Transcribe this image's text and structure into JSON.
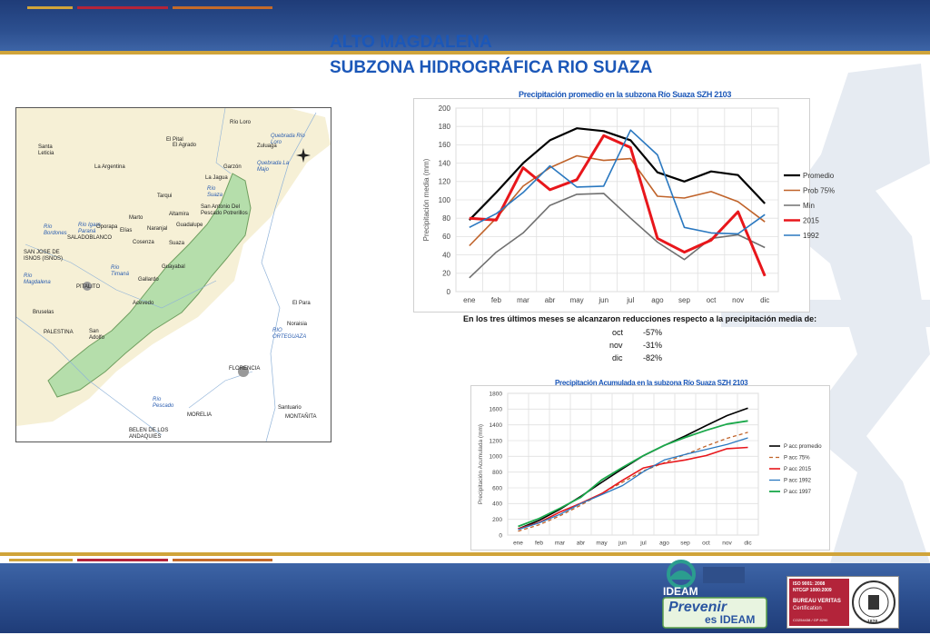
{
  "header": {
    "title_line1": "ALTO MAGDALENA",
    "title_line2": "SUBZONA HIDROGRÁFICA RIO SUAZA"
  },
  "colors": {
    "title_blue": "#1b57b8",
    "band_blue": "#2c4f8f",
    "gold": "#d0a43a",
    "basin_green": "#b5deab"
  },
  "map": {
    "labels": [
      "Río Loro",
      "Quebrada Río Loro",
      "Zuluaga",
      "El Pital",
      "El Agrado",
      "Santa Leticia",
      "La Argentina",
      "Garzón",
      "Quebrada La Majo",
      "La Jagua",
      "Río Suaza",
      "Tarqui",
      "San Antonio Del Pescado Potrerillos",
      "Altamira",
      "Guadalupe",
      "Río Bordones",
      "Río Igara Paraná",
      "Oporapa",
      "Elías",
      "Naranjal",
      "Marto",
      "SALADOBLANCO",
      "Cosenza",
      "Suaza",
      "SAN JOSE DE ISNOS (ISNOS)",
      "Río Magdalena",
      "Río Timaná",
      "Gallardo",
      "Guayabal",
      "PITALITO",
      "Acevedo",
      "El Para",
      "Bruselas",
      "Noraisia",
      "PALESTINA",
      "San Adolfo",
      "RIO ORTEGUAZA",
      "FLORENCIA",
      "Río Pescado",
      "MORELIA",
      "Santuario",
      "MONTAÑITA",
      "BELEN DE LOS ANDAQUIES"
    ]
  },
  "chart_data": [
    {
      "type": "line",
      "title": "Precipitación promedio en la subzona  Río Suaza SZH 2103",
      "ylabel": "Precipitación media  (mm)",
      "xlabel": "",
      "ylim": [
        0,
        200
      ],
      "yticks": [
        0,
        20,
        40,
        60,
        80,
        100,
        120,
        140,
        160,
        180,
        200
      ],
      "grid": true,
      "legend": "right",
      "categories": [
        "ene",
        "feb",
        "mar",
        "abr",
        "may",
        "jun",
        "jul",
        "ago",
        "sep",
        "oct",
        "nov",
        "dic"
      ],
      "series": [
        {
          "name": "Promedio",
          "color": "#000000",
          "width": 2.2,
          "values": [
            78,
            108,
            140,
            165,
            178,
            175,
            165,
            130,
            120,
            131,
            127,
            96
          ]
        },
        {
          "name": "Prob 75%",
          "color": "#c0632a",
          "width": 1.6,
          "values": [
            50,
            80,
            115,
            135,
            148,
            143,
            145,
            104,
            102,
            109,
            98,
            76
          ]
        },
        {
          "name": "Min",
          "color": "#707070",
          "width": 1.6,
          "values": [
            15,
            43,
            64,
            94,
            106,
            107,
            80,
            54,
            35,
            58,
            62,
            48
          ]
        },
        {
          "name": "2015",
          "color": "#e8161b",
          "width": 3,
          "values": [
            80,
            78,
            135,
            111,
            122,
            170,
            157,
            58,
            43,
            56,
            87,
            17
          ]
        },
        {
          "name": "1992",
          "color": "#2a78c0",
          "width": 1.6,
          "values": [
            70,
            85,
            108,
            137,
            114,
            115,
            176,
            149,
            70,
            64,
            63,
            84
          ]
        }
      ]
    },
    {
      "type": "line",
      "title": "Precipitación Acumulada en la subzona Río Suaza SZH 2103",
      "ylabel": "Precipitación Acumulada (mm)",
      "xlabel": "",
      "ylim": [
        0,
        1800
      ],
      "yticks": [
        0,
        200,
        400,
        600,
        800,
        1000,
        1200,
        1400,
        1600,
        1800
      ],
      "grid": true,
      "legend": "right",
      "categories": [
        "ene",
        "feb",
        "mar",
        "abr",
        "may",
        "jun",
        "jul",
        "ago",
        "sep",
        "oct",
        "nov",
        "dic"
      ],
      "series": [
        {
          "name": "P acc promedio",
          "color": "#000000",
          "width": 1.6,
          "dash": "",
          "values": [
            78,
            186,
            326,
            491,
            669,
            844,
            1009,
            1139,
            1259,
            1390,
            1517,
            1613
          ]
        },
        {
          "name": "P acc 75%",
          "color": "#c0632a",
          "width": 1.3,
          "dash": "4,3",
          "values": [
            50,
            130,
            245,
            380,
            528,
            671,
            816,
            920,
            1022,
            1131,
            1229,
            1305
          ]
        },
        {
          "name": "P acc 2015",
          "color": "#e8161b",
          "width": 1.6,
          "dash": "",
          "values": [
            80,
            158,
            293,
            404,
            526,
            696,
            853,
            911,
            954,
            1010,
            1097,
            1114
          ]
        },
        {
          "name": "P acc 1992",
          "color": "#2a78c0",
          "width": 1.3,
          "dash": "",
          "values": [
            70,
            155,
            263,
            400,
            514,
            629,
            805,
            954,
            1024,
            1088,
            1151,
            1235
          ]
        },
        {
          "name": "P acc 1997",
          "color": "#1aa84a",
          "width": 1.8,
          "dash": "",
          "values": [
            110,
            210,
            340,
            480,
            700,
            860,
            1010,
            1140,
            1240,
            1330,
            1410,
            1450
          ]
        }
      ]
    }
  ],
  "notes": {
    "summary": "En los tres últimos meses se alcanzaron reducciones respecto a la precipitación media de:",
    "rows": [
      {
        "month": "oct",
        "value": "-57%"
      },
      {
        "month": "nov",
        "value": "-31%"
      },
      {
        "month": "dic",
        "value": "-82%"
      }
    ]
  },
  "footer": {
    "ideam_brand": "IDEAM",
    "ideam_slogan_1": "Prevenir",
    "ideam_slogan_2": "es IDEAM",
    "bv_line1": "ISO 9001: 2008",
    "bv_line2": "NTCGP 1000:2009",
    "bv_line3": "BUREAU VERITAS",
    "bv_line4": "Certification",
    "bv_line5": "CO254438 / GP 8290",
    "bv_year": "1828"
  }
}
